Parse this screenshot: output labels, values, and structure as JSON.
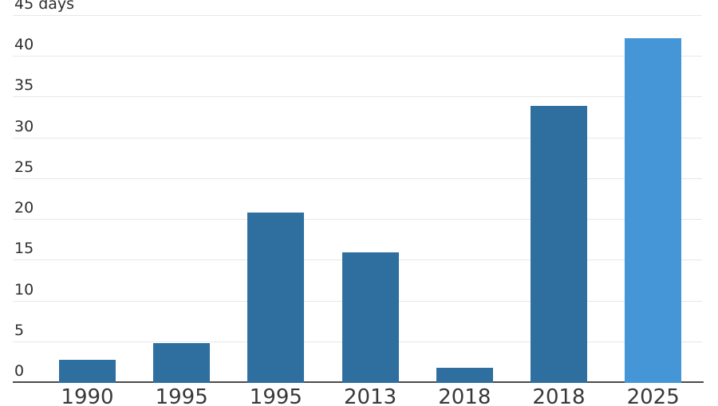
{
  "chart_data": {
    "type": "bar",
    "title": "",
    "unit_label": "45 days",
    "categories": [
      "1990",
      "1995",
      "1995",
      "2013",
      "2018",
      "2018",
      "2025"
    ],
    "values": [
      2.8,
      4.9,
      20.9,
      16,
      1.9,
      34,
      42.3
    ],
    "bar_colors": [
      "#2e6f9f",
      "#2e6f9f",
      "#2e6f9f",
      "#2e6f9f",
      "#2e6f9f",
      "#2e6f9f",
      "#4596d7"
    ],
    "xlabel": "",
    "ylabel": "days",
    "ylim": [
      0,
      45
    ],
    "yticks": [
      0,
      5,
      10,
      15,
      20,
      25,
      30,
      35,
      40,
      45
    ],
    "ytick_labels": [
      "0",
      "5",
      "10",
      "15",
      "20",
      "25",
      "30",
      "35",
      "40",
      "45 days"
    ],
    "grid": true,
    "legend_position": "none",
    "colors": {
      "bar_default": "#2e6f9f",
      "bar_highlight": "#4596d7",
      "gridline": "#e7e7e7",
      "axis_line": "#4b4b4b",
      "tick_text": "#2e2e2e",
      "xlabel_text": "#383838",
      "background": "#ffffff"
    }
  }
}
